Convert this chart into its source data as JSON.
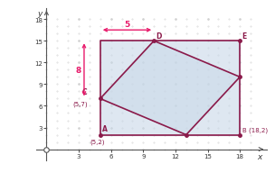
{
  "outer_square": [
    [
      5,
      2
    ],
    [
      18,
      2
    ],
    [
      18,
      15
    ],
    [
      5,
      15
    ],
    [
      5,
      2
    ]
  ],
  "inner_square": [
    [
      5,
      7
    ],
    [
      10,
      15
    ],
    [
      18,
      10
    ],
    [
      13,
      2
    ],
    [
      5,
      7
    ]
  ],
  "dot_pts": [
    [
      5,
      2
    ],
    [
      18,
      2
    ],
    [
      5,
      7
    ],
    [
      10,
      15
    ],
    [
      18,
      15
    ],
    [
      18,
      10
    ],
    [
      13,
      2
    ]
  ],
  "outer_color": "#c8d8e8",
  "line_color": "#8b1a4a",
  "arrow_color": "#e8196a",
  "dot_color": "#8b1a4a",
  "bg_color": "#ffffff",
  "grid_color": "#c8c8c8",
  "axis_color": "#555555",
  "label_color": "#8b1a4a",
  "xlim": [
    -1,
    20.5
  ],
  "ylim": [
    -1.5,
    19.5
  ],
  "xticks": [
    3,
    6,
    9,
    12,
    15,
    18
  ],
  "yticks": [
    3,
    6,
    9,
    12,
    15,
    18
  ],
  "dim5_y": 16.5,
  "dim5_x1": 5,
  "dim5_x2": 10,
  "dim8_x": 3.5,
  "dim8_y1": 7,
  "dim8_y2": 15
}
